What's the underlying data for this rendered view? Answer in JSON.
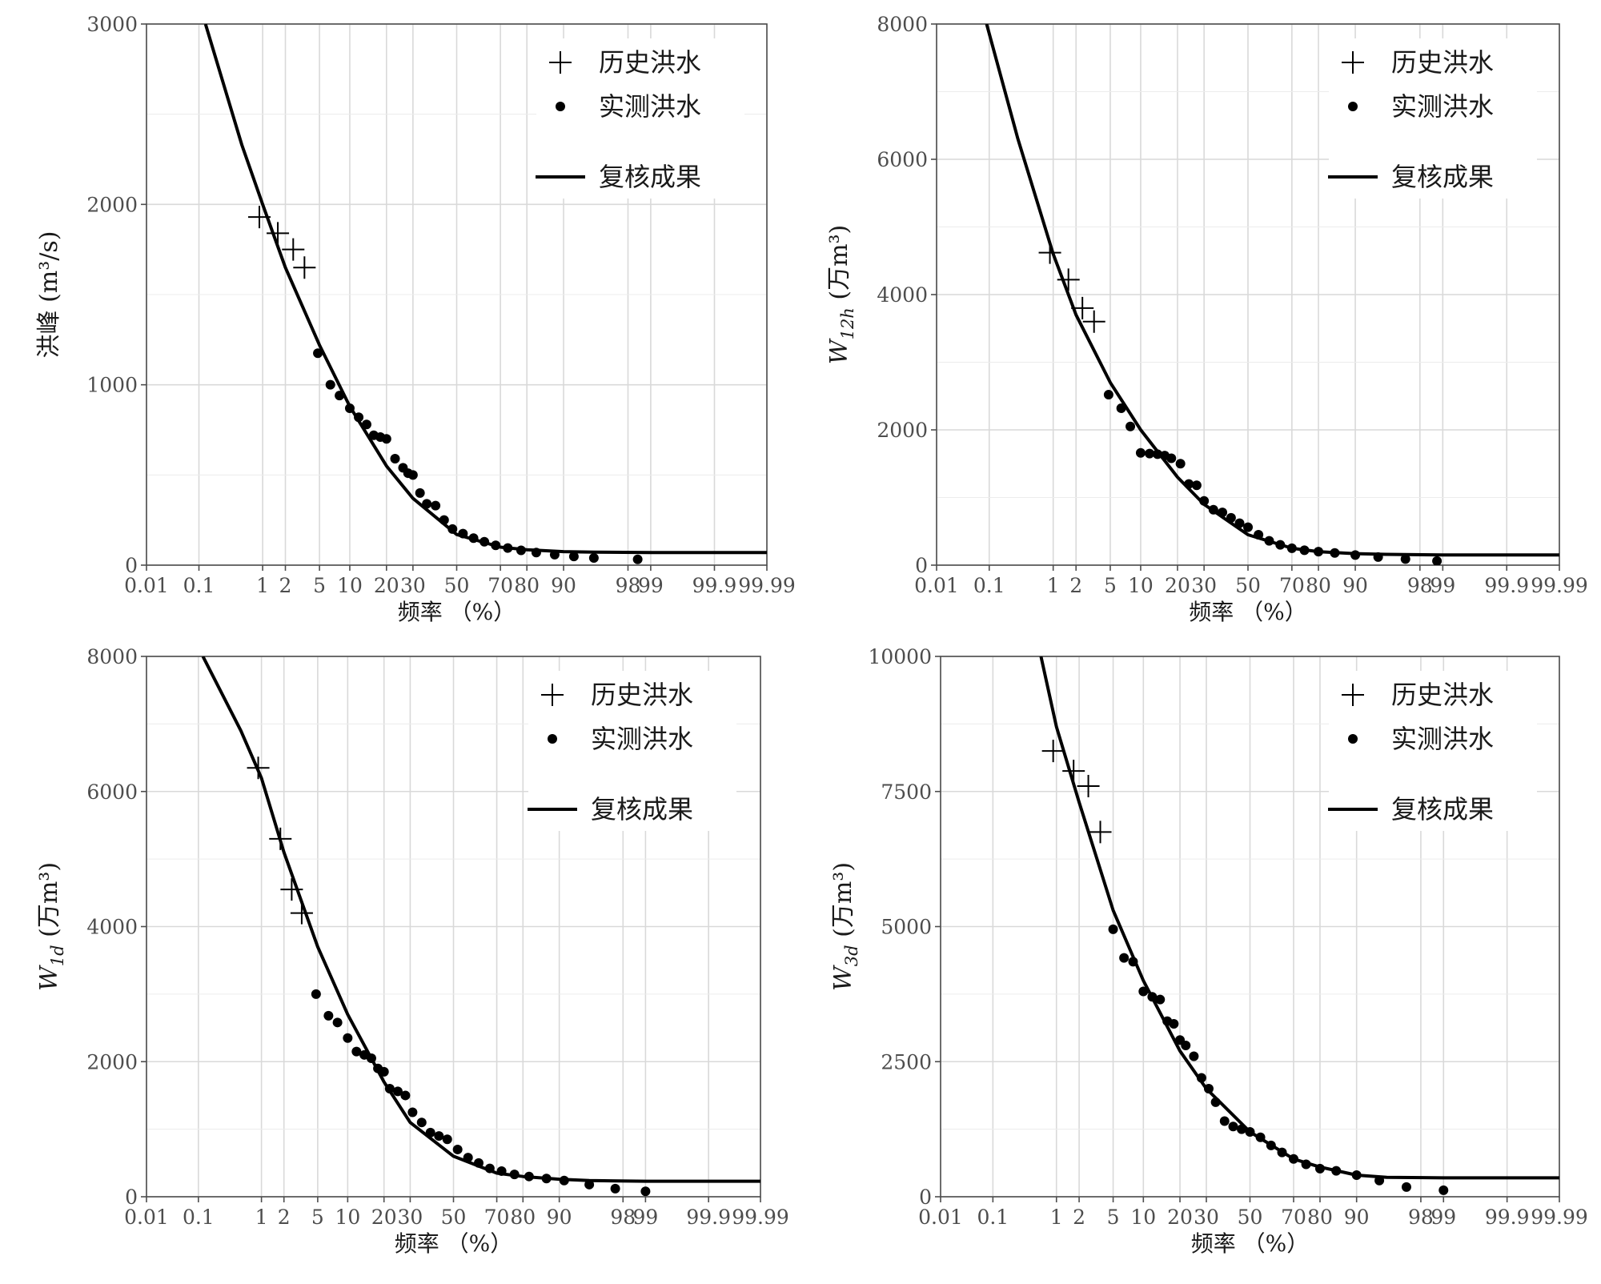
{
  "panels": [
    {
      "ylabel_main": "洪峰",
      "ylabel_sub": "",
      "ylabel_unit": "(m³/s)",
      "xlabel": "频率 （%）",
      "legend": {
        "historical": "历史洪水",
        "measured": "实测洪水",
        "fit": "复核成果"
      },
      "yticks": [
        "0",
        "1000",
        "2000",
        "3000"
      ]
    },
    {
      "ylabel_main": "W",
      "ylabel_sub": "12h",
      "ylabel_unit": "(万m³)",
      "xlabel": "频率 （%）",
      "legend": {
        "historical": "历史洪水",
        "measured": "实测洪水",
        "fit": "复核成果"
      },
      "yticks": [
        "0",
        "2000",
        "4000",
        "6000",
        "8000"
      ]
    },
    {
      "ylabel_main": "W",
      "ylabel_sub": "1d",
      "ylabel_unit": "(万m³)",
      "xlabel": "频率 （%）",
      "legend": {
        "historical": "历史洪水",
        "measured": "实测洪水",
        "fit": "复核成果"
      },
      "yticks": [
        "0",
        "2000",
        "4000",
        "6000",
        "8000"
      ]
    },
    {
      "ylabel_main": "W",
      "ylabel_sub": "3d",
      "ylabel_unit": "(万m³)",
      "xlabel": "频率 （%）",
      "legend": {
        "historical": "历史洪水",
        "measured": "实测洪水",
        "fit": "复核成果"
      },
      "yticks": [
        "0",
        "2500",
        "5000",
        "7500",
        "10000"
      ]
    }
  ],
  "chart_data": [
    {
      "type": "scatter",
      "xscale": "normal-probability",
      "xticks": [
        0.01,
        0.1,
        1,
        2,
        5,
        10,
        20,
        30,
        50,
        70,
        80,
        90,
        98,
        99,
        99.9,
        99.99
      ],
      "xlim": [
        0.01,
        99.99
      ],
      "ylim": [
        0,
        3000
      ],
      "grid": true,
      "legend_position": "top-right",
      "series": [
        {
          "name": "历史洪水",
          "marker": "plus",
          "x": [
            0.9,
            1.6,
            2.5,
            3.4
          ],
          "y": [
            1930,
            1840,
            1750,
            1650
          ]
        },
        {
          "name": "实测洪水",
          "marker": "dot",
          "x": [
            4.8,
            6.5,
            8.0,
            10,
            12,
            14,
            16,
            18,
            20,
            23,
            26,
            28,
            30,
            33,
            36,
            40,
            44,
            48,
            53,
            58,
            63,
            68,
            73,
            78,
            83,
            88,
            92,
            95,
            98.5
          ],
          "y": [
            1175,
            1000,
            940,
            870,
            820,
            780,
            720,
            710,
            700,
            590,
            540,
            510,
            500,
            400,
            340,
            330,
            250,
            200,
            175,
            150,
            130,
            110,
            95,
            82,
            70,
            58,
            48,
            40,
            32
          ]
        },
        {
          "name": "复核成果",
          "type": "line",
          "x": [
            0.13,
            0.5,
            1,
            2,
            5,
            10,
            20,
            30,
            50,
            70,
            80,
            90,
            95,
            99,
            99.99
          ],
          "y": [
            3000,
            2330,
            2000,
            1650,
            1220,
            880,
            550,
            370,
            170,
            100,
            85,
            75,
            72,
            70,
            70
          ]
        }
      ]
    },
    {
      "type": "scatter",
      "xscale": "normal-probability",
      "xticks": [
        0.01,
        0.1,
        1,
        2,
        5,
        10,
        20,
        30,
        50,
        70,
        80,
        90,
        98,
        99,
        99.9,
        99.99
      ],
      "xlim": [
        0.01,
        99.99
      ],
      "ylim": [
        0,
        8000
      ],
      "grid": true,
      "legend_position": "top-right",
      "series": [
        {
          "name": "历史洪水",
          "marker": "plus",
          "x": [
            0.9,
            1.6,
            2.4,
            3.3
          ],
          "y": [
            4620,
            4220,
            3800,
            3600
          ]
        },
        {
          "name": "实测洪水",
          "marker": "dot",
          "x": [
            4.8,
            6.5,
            8.0,
            10,
            12,
            14,
            16,
            18,
            21,
            24,
            27,
            30,
            34,
            38,
            42,
            46,
            50,
            55,
            60,
            65,
            70,
            75,
            80,
            85,
            90,
            94,
            97,
            98.8
          ],
          "y": [
            2520,
            2320,
            2050,
            1660,
            1650,
            1640,
            1620,
            1580,
            1500,
            1200,
            1180,
            950,
            820,
            780,
            700,
            620,
            560,
            450,
            360,
            300,
            250,
            220,
            200,
            180,
            150,
            120,
            90,
            60
          ]
        },
        {
          "name": "复核成果",
          "type": "line",
          "x": [
            0.09,
            0.3,
            1,
            2,
            5,
            10,
            20,
            30,
            50,
            70,
            80,
            90,
            95,
            99,
            99.99
          ],
          "y": [
            8000,
            6300,
            4600,
            3700,
            2700,
            2000,
            1300,
            900,
            450,
            250,
            200,
            170,
            160,
            150,
            150
          ]
        }
      ]
    },
    {
      "type": "scatter",
      "xscale": "normal-probability",
      "xticks": [
        0.01,
        0.1,
        1,
        2,
        5,
        10,
        20,
        30,
        50,
        70,
        80,
        90,
        98,
        99,
        99.9,
        99.99
      ],
      "xlim": [
        0.01,
        99.99
      ],
      "ylim": [
        0,
        8000
      ],
      "grid": true,
      "legend_position": "top-right",
      "series": [
        {
          "name": "历史洪水",
          "marker": "plus",
          "x": [
            0.9,
            1.8,
            2.5,
            3.3
          ],
          "y": [
            6350,
            5300,
            4550,
            4200
          ]
        },
        {
          "name": "实测洪水",
          "marker": "dot",
          "x": [
            4.8,
            6.5,
            8.0,
            10,
            12,
            14,
            16,
            18,
            20,
            22,
            25,
            28,
            31,
            35,
            39,
            43,
            47,
            52,
            57,
            62,
            67,
            72,
            77,
            82,
            87,
            91,
            95,
            97.5,
            99
          ],
          "y": [
            3000,
            2680,
            2580,
            2350,
            2150,
            2100,
            2050,
            1900,
            1850,
            1600,
            1560,
            1500,
            1250,
            1100,
            950,
            900,
            850,
            700,
            580,
            500,
            420,
            380,
            330,
            300,
            270,
            240,
            180,
            120,
            80
          ]
        },
        {
          "name": "复核成果",
          "type": "line",
          "x": [
            0.12,
            0.5,
            1,
            2,
            5,
            10,
            20,
            30,
            50,
            70,
            80,
            90,
            95,
            99,
            99.99
          ],
          "y": [
            8000,
            6900,
            6200,
            5100,
            3700,
            2700,
            1700,
            1100,
            600,
            350,
            300,
            260,
            240,
            230,
            230
          ]
        }
      ]
    },
    {
      "type": "scatter",
      "xscale": "normal-probability",
      "xticks": [
        0.01,
        0.1,
        1,
        2,
        5,
        10,
        20,
        30,
        50,
        70,
        80,
        90,
        98,
        99,
        99.9,
        99.99
      ],
      "xlim": [
        0.01,
        99.99
      ],
      "ylim": [
        0,
        10000
      ],
      "grid": true,
      "legend_position": "top-right",
      "series": [
        {
          "name": "历史洪水",
          "marker": "plus",
          "x": [
            0.9,
            1.7,
            2.6,
            3.6
          ],
          "y": [
            8250,
            7880,
            7600,
            6750
          ]
        },
        {
          "name": "实测洪水",
          "marker": "dot",
          "x": [
            5.0,
            6.5,
            8.0,
            10,
            12,
            14,
            16,
            18,
            20,
            22,
            25,
            28,
            31,
            34,
            38,
            42,
            46,
            50,
            55,
            60,
            65,
            70,
            75,
            80,
            85,
            90,
            94,
            97,
            99
          ],
          "y": [
            4950,
            4420,
            4350,
            3800,
            3700,
            3650,
            3250,
            3200,
            2900,
            2800,
            2600,
            2200,
            2000,
            1750,
            1400,
            1300,
            1250,
            1200,
            1100,
            950,
            820,
            700,
            600,
            520,
            480,
            400,
            300,
            180,
            120
          ]
        },
        {
          "name": "复核成果",
          "type": "line",
          "x": [
            0.6,
            1,
            2,
            5,
            10,
            20,
            30,
            50,
            70,
            80,
            90,
            95,
            99,
            99.99
          ],
          "y": [
            10000,
            8700,
            7300,
            5300,
            4000,
            2700,
            2000,
            1200,
            700,
            550,
            400,
            360,
            350,
            350
          ]
        }
      ]
    }
  ]
}
